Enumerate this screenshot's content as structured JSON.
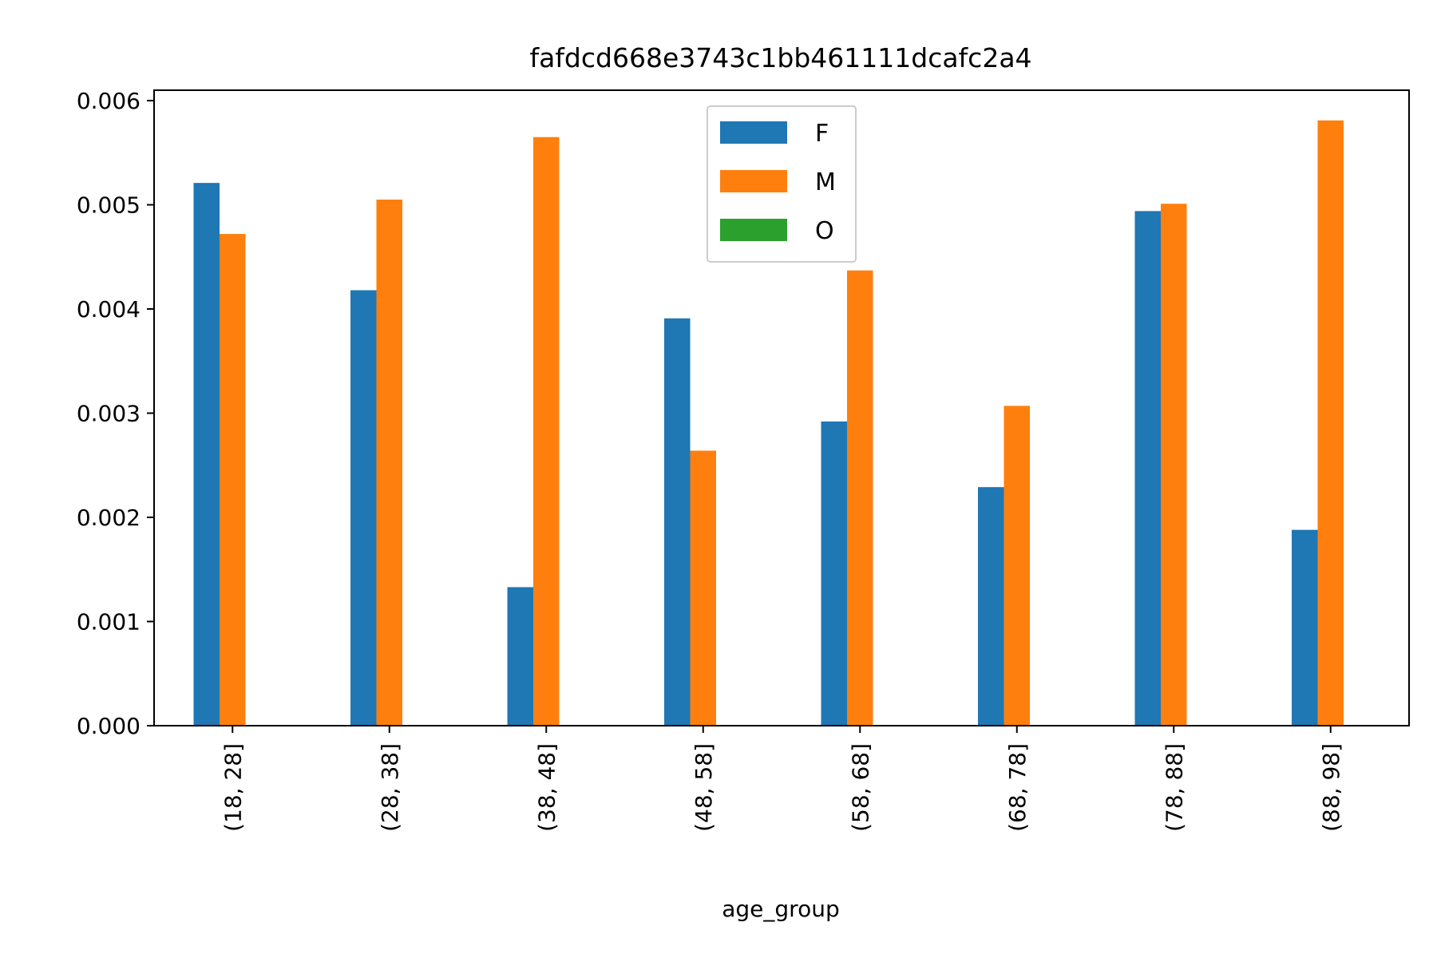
{
  "chart_data": {
    "type": "bar",
    "title": "fafdcd668e3743c1bb461111dcafc2a4",
    "xlabel": "age_group",
    "ylabel": "",
    "categories": [
      "(18, 28]",
      "(28, 38]",
      "(38, 48]",
      "(48, 58]",
      "(58, 68]",
      "(68, 78]",
      "(78, 88]",
      "(88, 98]"
    ],
    "series": [
      {
        "name": "F",
        "color": "#1f77b4",
        "values": [
          0.00521,
          0.00418,
          0.00133,
          0.00391,
          0.00292,
          0.00229,
          0.00494,
          0.00188
        ]
      },
      {
        "name": "M",
        "color": "#ff7f0e",
        "values": [
          0.00472,
          0.00505,
          0.00565,
          0.00264,
          0.00437,
          0.00307,
          0.00501,
          0.00581
        ]
      },
      {
        "name": "O",
        "color": "#2ca02c",
        "values": [
          0,
          0,
          0,
          0,
          0,
          0,
          0,
          0
        ]
      }
    ],
    "ylim": [
      0,
      0.0061
    ],
    "yticks": [
      "0.000",
      "0.001",
      "0.002",
      "0.003",
      "0.004",
      "0.005",
      "0.006"
    ],
    "grid": false,
    "legend_position": "upper center"
  }
}
